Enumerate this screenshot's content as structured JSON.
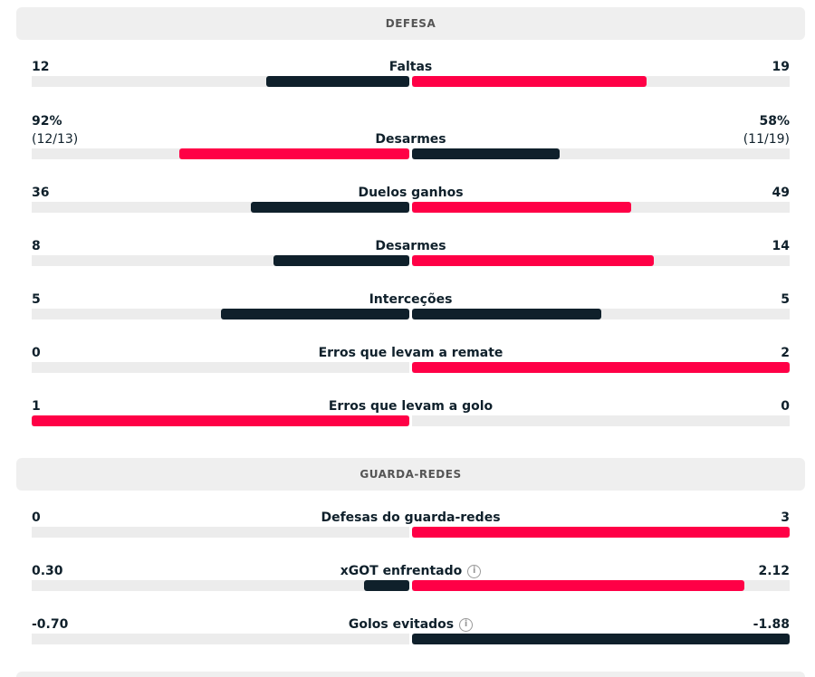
{
  "colors": {
    "red": "#ff0046",
    "dark": "#0f202b"
  },
  "sections": [
    {
      "title": "DEFESA",
      "rows": [
        {
          "label": "Faltas",
          "left": "12",
          "right": "19",
          "left_fill": 0.38,
          "right_fill": 0.62,
          "left_color": "dark",
          "right_color": "red"
        },
        {
          "label": "Desarmes",
          "left": "92%",
          "left_sub": "(12/13)",
          "right": "58%",
          "right_sub": "(11/19)",
          "left_fill": 0.61,
          "right_fill": 0.39,
          "left_color": "red",
          "right_color": "dark"
        },
        {
          "label": "Duelos ganhos",
          "left": "36",
          "right": "49",
          "left_fill": 0.42,
          "right_fill": 0.58,
          "left_color": "dark",
          "right_color": "red"
        },
        {
          "label": "Desarmes",
          "left": "8",
          "right": "14",
          "left_fill": 0.36,
          "right_fill": 0.64,
          "left_color": "dark",
          "right_color": "red"
        },
        {
          "label": "Interceções",
          "left": "5",
          "right": "5",
          "left_fill": 0.5,
          "right_fill": 0.5,
          "left_color": "dark",
          "right_color": "dark"
        },
        {
          "label": "Erros que levam a remate",
          "left": "0",
          "right": "2",
          "left_fill": 0,
          "right_fill": 1,
          "left_color": "dark",
          "right_color": "red"
        },
        {
          "label": "Erros que levam a golo",
          "left": "1",
          "right": "0",
          "left_fill": 1,
          "right_fill": 0,
          "left_color": "red",
          "right_color": "dark"
        }
      ]
    },
    {
      "title": "GUARDA-REDES",
      "rows": [
        {
          "label": "Defesas do guarda-redes",
          "left": "0",
          "right": "3",
          "left_fill": 0,
          "right_fill": 1,
          "left_color": "dark",
          "right_color": "red"
        },
        {
          "label": "xGOT enfrentado",
          "info": true,
          "left": "0.30",
          "right": "2.12",
          "left_fill": 0.12,
          "right_fill": 0.88,
          "left_color": "dark",
          "right_color": "red"
        },
        {
          "label": "Golos evitados",
          "info": true,
          "left": "-0.70",
          "right": "-1.88",
          "left_fill": 0,
          "right_fill": 1,
          "left_color": "dark",
          "right_color": "dark"
        }
      ]
    }
  ],
  "info_glyph": "i"
}
